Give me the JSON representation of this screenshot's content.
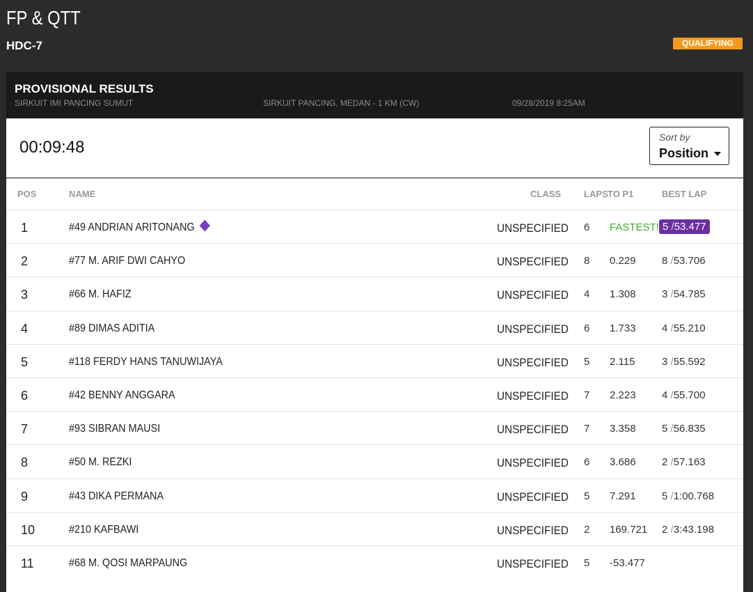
{
  "header": {
    "title": "FP & QTT",
    "subtitle": "HDC-7",
    "badge": "QUALIFYING"
  },
  "panel": {
    "title": "PROVISIONAL RESULTS",
    "venue": "SIRKUIT IMI PANCING SUMUT",
    "track": "SIRKUIT PANCING, MEDAN - 1 KM (CW)",
    "datetime": "09/28/2019 8:25AM"
  },
  "timer": "00:09:48",
  "sort": {
    "label": "Sort by",
    "value": "Position"
  },
  "table": {
    "columns": [
      "POS",
      "NAME",
      "CLASS",
      "LAPS",
      "TO P1",
      "BEST LAP"
    ],
    "lap_separator": "/",
    "rows": [
      {
        "pos": 1,
        "name": "#49 ANDRIAN ARITONANG",
        "class": "UNSPECIFIED",
        "laps": 6,
        "to_p1": "FASTEST!",
        "best_lap": {
          "lap": 5,
          "time": "53.477"
        }
      },
      {
        "pos": 2,
        "name": "#77 M. ARIF DWI CAHYO",
        "class": "UNSPECIFIED",
        "laps": 8,
        "to_p1": "0.229",
        "best_lap": {
          "lap": 8,
          "time": "53.706"
        }
      },
      {
        "pos": 3,
        "name": "#66 M. HAFIZ",
        "class": "UNSPECIFIED",
        "laps": 4,
        "to_p1": "1.308",
        "best_lap": {
          "lap": 3,
          "time": "54.785"
        }
      },
      {
        "pos": 4,
        "name": "#89 DIMAS ADITIA",
        "class": "UNSPECIFIED",
        "laps": 6,
        "to_p1": "1.733",
        "best_lap": {
          "lap": 4,
          "time": "55.210"
        }
      },
      {
        "pos": 5,
        "name": "#118 FERDY HANS TANUWIJAYA",
        "class": "UNSPECIFIED",
        "laps": 5,
        "to_p1": "2.115",
        "best_lap": {
          "lap": 3,
          "time": "55.592"
        }
      },
      {
        "pos": 6,
        "name": "#42 BENNY ANGGARA",
        "class": "UNSPECIFIED",
        "laps": 7,
        "to_p1": "2.223",
        "best_lap": {
          "lap": 4,
          "time": "55.700"
        }
      },
      {
        "pos": 7,
        "name": "#93 SIBRAN MAUSI",
        "class": "UNSPECIFIED",
        "laps": 7,
        "to_p1": "3.358",
        "best_lap": {
          "lap": 5,
          "time": "56.835"
        }
      },
      {
        "pos": 8,
        "name": "#50 M. REZKI",
        "class": "UNSPECIFIED",
        "laps": 6,
        "to_p1": "3.686",
        "best_lap": {
          "lap": 2,
          "time": "57.163"
        }
      },
      {
        "pos": 9,
        "name": "#43 DIKA PERMANA",
        "class": "UNSPECIFIED",
        "laps": 5,
        "to_p1": "7.291",
        "best_lap": {
          "lap": 5,
          "time": "1:00.768"
        }
      },
      {
        "pos": 10,
        "name": "#210 KAFBAWI",
        "class": "UNSPECIFIED",
        "laps": 2,
        "to_p1": "169.721",
        "best_lap": {
          "lap": 2,
          "time": "3:43.198"
        }
      },
      {
        "pos": 11,
        "name": "#68 M. QOSI MARPAUNG",
        "class": "UNSPECIFIED",
        "laps": 5,
        "to_p1": "-53.477"
      }
    ]
  }
}
